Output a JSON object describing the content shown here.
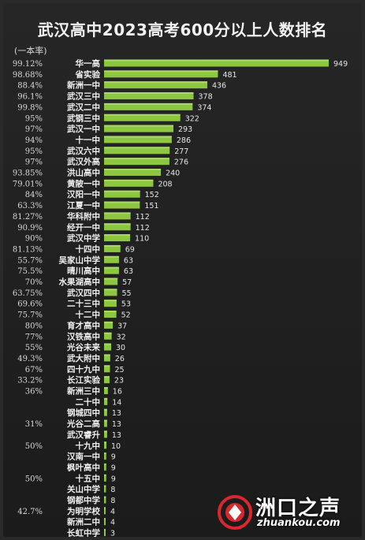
{
  "title": "武汉高中2023高考600分以上人数排名",
  "note": "(一本率)",
  "chart_data": {
    "type": "bar",
    "orientation": "horizontal",
    "title": "武汉高中2023高考600分以上人数排名",
    "categories": [
      "华一高",
      "省实验",
      "新洲一中",
      "武汉三中",
      "武汉二中",
      "武钢三中",
      "武汉一中",
      "十一中",
      "武汉六中",
      "武汉外高",
      "洪山高中",
      "黄陂一中",
      "汉阳一中",
      "江夏一中",
      "华科附中",
      "经开一中",
      "武汉中学",
      "十四中",
      "吴家山中学",
      "晴川高中",
      "水果湖高中",
      "武汉四中",
      "二十三中",
      "十二中",
      "育才高中",
      "汉铁高中",
      "光谷未来",
      "武大附中",
      "四十九中",
      "长江实验",
      "新洲三中",
      "二十中",
      "钢城四中",
      "光谷二高",
      "武汉睿升",
      "十九中",
      "汉南一中",
      "枫叶高中",
      "十五中",
      "关山中学",
      "钢都中学",
      "为明学校",
      "新洲二中",
      "长虹中学"
    ],
    "values": [
      949,
      481,
      436,
      378,
      374,
      322,
      293,
      286,
      277,
      276,
      240,
      208,
      152,
      151,
      112,
      112,
      110,
      69,
      63,
      63,
      57,
      55,
      53,
      52,
      37,
      32,
      30,
      26,
      25,
      23,
      16,
      14,
      13,
      13,
      13,
      10,
      9,
      9,
      9,
      8,
      8,
      4,
      4,
      3
    ],
    "rates": [
      "99.12%",
      "98.68%",
      "88.4%",
      "96.1%",
      "99.8%",
      "95%",
      "97%",
      "94%",
      "95%",
      "97%",
      "93.85%",
      "79.01%",
      "84%",
      "63.3%",
      "81.27%",
      "90.9%",
      "90%",
      "81.13%",
      "55.7%",
      "75.5%",
      "70%",
      "63.75%",
      "69.6%",
      "75.7%",
      "80%",
      "77%",
      "55%",
      "49.3%",
      "67%",
      "33.2%",
      "36%",
      "",
      "",
      "31%",
      "",
      "50%",
      "",
      "",
      "50%",
      "",
      "",
      "42.7%",
      "",
      ""
    ],
    "xlim": [
      0,
      949
    ],
    "bar_color": "#8dc63f",
    "grid": false
  },
  "watermark": {
    "brand": "洲口之声",
    "url": "zhuankou.com",
    "logo_color": "#d8282e"
  }
}
